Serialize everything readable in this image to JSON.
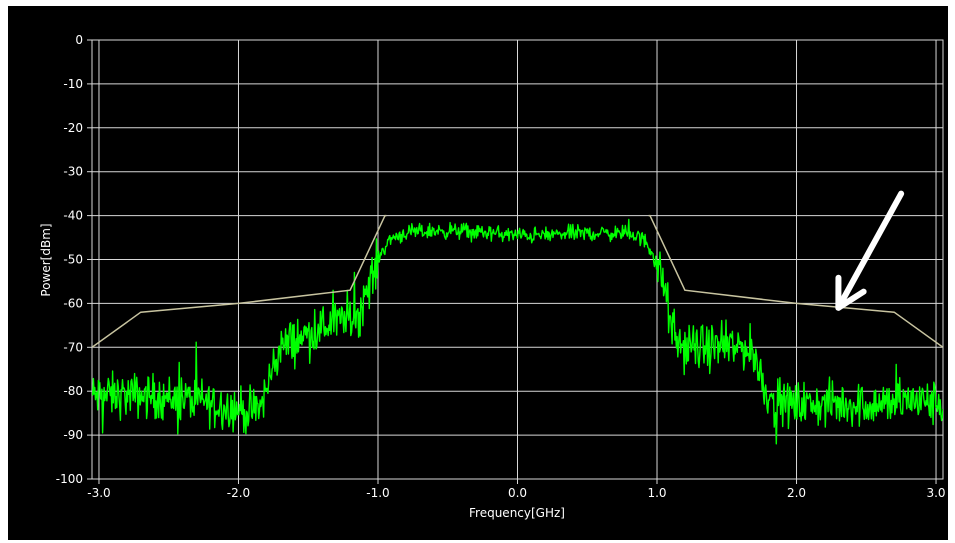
{
  "chart_data": {
    "type": "line",
    "xlabel": "Frequency[GHz]",
    "ylabel": "Power[dBm]",
    "xlim": [
      -3.05,
      3.05
    ],
    "ylim": [
      -100,
      0
    ],
    "x_ticks": [
      -3.0,
      -2.0,
      -1.0,
      0.0,
      1.0,
      2.0,
      3.0
    ],
    "x_tick_labels": [
      "-3.0",
      "-2.0",
      "-1.0",
      "0.0",
      "1.0",
      "2.0",
      "3.0"
    ],
    "y_ticks": [
      0,
      -10,
      -20,
      -30,
      -40,
      -50,
      -60,
      -70,
      -80,
      -90,
      -100
    ],
    "y_tick_labels": [
      "0",
      "-10",
      "-20",
      "-30",
      "-40",
      "-50",
      "-60",
      "-70",
      "-80",
      "-90",
      "-100"
    ],
    "grid": true,
    "background": "#000000",
    "grid_color": "#d8d8d8",
    "series": [
      {
        "color": "#00ff00",
        "style": "noisy spectrum trace",
        "noise_dBm": 2.5,
        "x": [
          -3.05,
          -2.7,
          -2.3,
          -2.0,
          -1.9,
          -1.85,
          -1.8,
          -1.75,
          -1.7,
          -1.5,
          -1.3,
          -1.12,
          -1.1,
          -1.05,
          -1.0,
          -0.95,
          -0.9,
          -0.8,
          -0.6,
          -0.4,
          -0.2,
          0.0,
          0.2,
          0.4,
          0.6,
          0.75,
          0.85,
          0.92,
          0.96,
          1.0,
          1.04,
          1.08,
          1.1,
          1.13,
          1.2,
          1.4,
          1.6,
          1.65,
          1.7,
          1.75,
          1.8,
          1.85,
          2.0,
          2.3,
          2.6,
          2.8,
          3.05
        ],
        "y": [
          -81,
          -81,
          -82,
          -84,
          -85,
          -84,
          -80,
          -74,
          -70,
          -67,
          -64,
          -62,
          -58,
          -55,
          -50,
          -47,
          -45,
          -44,
          -43.5,
          -43.5,
          -44,
          -44.5,
          -44.5,
          -44,
          -44,
          -44,
          -44.5,
          -46,
          -48,
          -51,
          -55,
          -61,
          -65,
          -69,
          -70,
          -70,
          -70,
          -70,
          -72,
          -77,
          -81,
          -83,
          -83,
          -83,
          -83,
          -82,
          -83
        ]
      },
      {
        "color": "#c8c4a0",
        "style": "spectrum mask",
        "x": [
          -3.05,
          -2.7,
          -2.0,
          -1.2,
          -0.95,
          -0.94
        ],
        "y": [
          -70,
          -62,
          -60,
          -57,
          -40,
          -40
        ]
      },
      {
        "color": "#c8c4a0",
        "style": "spectrum mask",
        "x": [
          0.94,
          0.95,
          1.2,
          2.0,
          2.7,
          3.05
        ],
        "y": [
          -40,
          -40,
          -57,
          -60,
          -62,
          -70
        ]
      }
    ],
    "annotations": [
      {
        "type": "arrow",
        "color": "#ffffff",
        "from": [
          2.75,
          -35
        ],
        "to": [
          2.3,
          -61
        ]
      }
    ]
  }
}
